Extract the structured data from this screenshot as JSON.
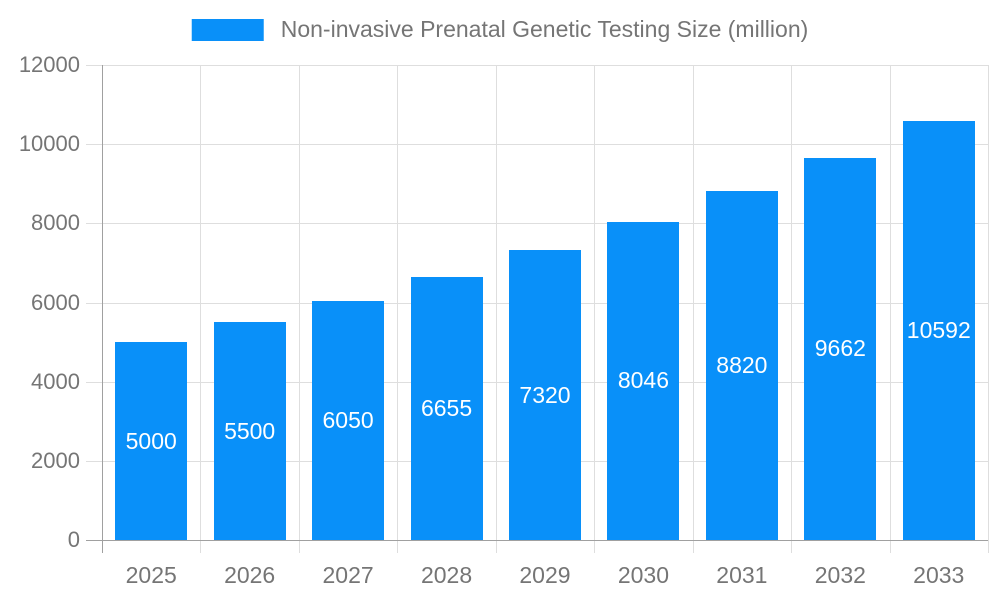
{
  "chart_data": {
    "type": "bar",
    "title": "Non-invasive Prenatal Genetic Testing Size (million)",
    "categories": [
      "2025",
      "2026",
      "2027",
      "2028",
      "2029",
      "2030",
      "2031",
      "2032",
      "2033"
    ],
    "values": [
      5000,
      5500,
      6050,
      6655,
      7320,
      8046,
      8820,
      9662,
      10592
    ],
    "xlabel": "",
    "ylabel": "",
    "ylim": [
      0,
      12000
    ],
    "ytick_step": 2000,
    "ytick_labels": [
      "0",
      "2000",
      "4000",
      "6000",
      "8000",
      "10000",
      "12000"
    ],
    "grid": true,
    "legend_position": "top-center",
    "value_labels_inside_bars": true,
    "colors": {
      "bar": "#0990f9",
      "bar_value_text": "#ffffff",
      "axis_text": "#757575",
      "axis_line": "#a0a0a0",
      "gridline": "#dedede",
      "background": "#ffffff"
    }
  }
}
